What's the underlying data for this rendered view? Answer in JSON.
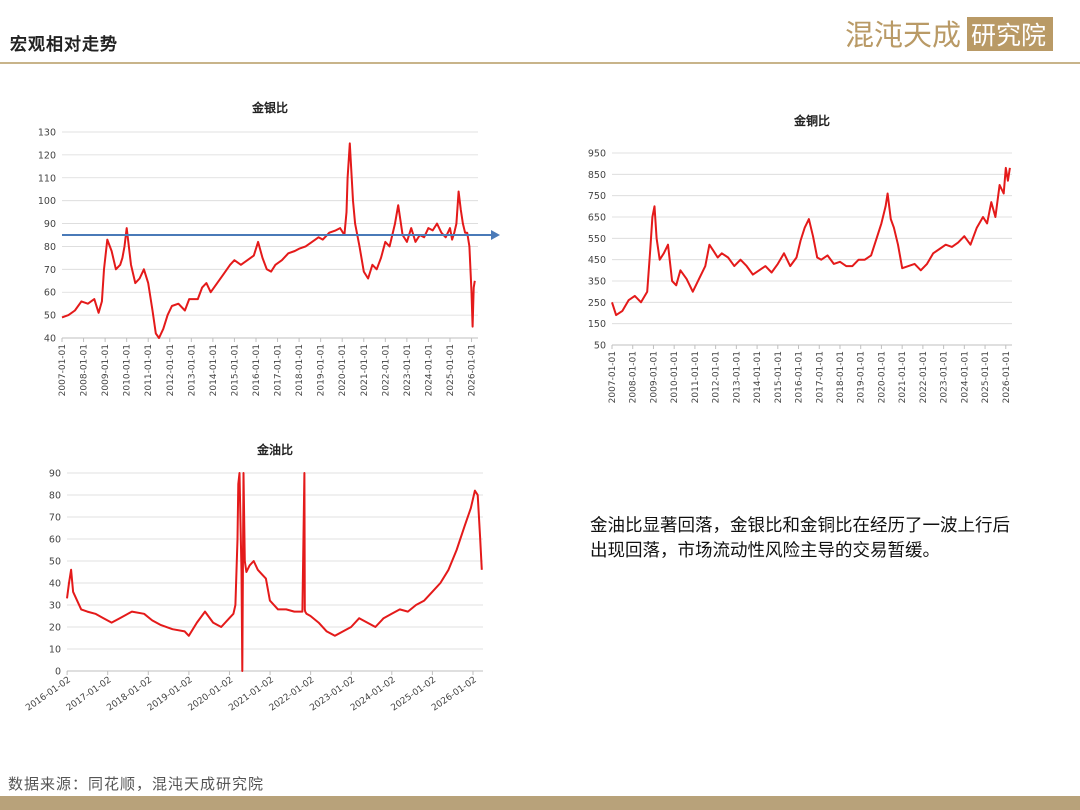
{
  "header": {
    "title": "宏观相对走势"
  },
  "logo": {
    "text": "混沌天成研究院",
    "brand_left": "混沌天成",
    "brand_right": "研究院",
    "color": "#b99a66",
    "box_color": "#b99a66"
  },
  "annotation": {
    "text": "金油比显著回落，金银比和金铜比在经历了一波上行后出现回落，市场流动性风险主导的交易暂缓。"
  },
  "source": {
    "text": "数据来源：同花顺，混沌天成研究院"
  },
  "colors": {
    "series": "#e41a1a",
    "arrow": "#4a7ab8",
    "grid": "#d9d9d9",
    "accent_line": "#c8b48a"
  },
  "chart_data": [
    {
      "id": "gold-silver",
      "type": "line",
      "title": "金银比",
      "ylim": [
        40,
        130
      ],
      "yticks": [
        40,
        50,
        60,
        70,
        80,
        90,
        100,
        110,
        120,
        130
      ],
      "xlim": [
        2007.0,
        2026.3
      ],
      "xtick_labels": [
        "2007-01-01",
        "2008-01-01",
        "2009-01-01",
        "2010-01-01",
        "2011-01-01",
        "2012-01-01",
        "2013-01-01",
        "2014-01-01",
        "2015-01-01",
        "2016-01-01",
        "2017-01-01",
        "2018-01-01",
        "2019-01-01",
        "2020-01-01",
        "2021-01-01",
        "2022-01-01",
        "2023-01-01",
        "2024-01-01",
        "2025-01-01",
        "2026-01-01"
      ],
      "grid": true,
      "reference_line": {
        "y": 85,
        "color": "#4a7ab8",
        "arrow": true
      },
      "series": [
        {
          "color": "#e41a1a",
          "x": [
            2007.0,
            2007.3,
            2007.6,
            2007.9,
            2008.2,
            2008.5,
            2008.7,
            2008.85,
            2008.95,
            2009.1,
            2009.3,
            2009.5,
            2009.7,
            2009.8,
            2009.9,
            2010.0,
            2010.2,
            2010.4,
            2010.6,
            2010.8,
            2011.0,
            2011.2,
            2011.35,
            2011.5,
            2011.7,
            2011.9,
            2012.1,
            2012.4,
            2012.7,
            2012.9,
            2013.1,
            2013.3,
            2013.5,
            2013.7,
            2013.9,
            2014.2,
            2014.5,
            2014.8,
            2015.0,
            2015.3,
            2015.6,
            2015.9,
            2016.1,
            2016.3,
            2016.5,
            2016.7,
            2016.9,
            2017.2,
            2017.5,
            2017.8,
            2018.0,
            2018.3,
            2018.6,
            2018.9,
            2019.1,
            2019.4,
            2019.7,
            2019.9,
            2020.1,
            2020.2,
            2020.25,
            2020.35,
            2020.5,
            2020.6,
            2020.8,
            2021.0,
            2021.2,
            2021.4,
            2021.6,
            2021.8,
            2022.0,
            2022.2,
            2022.45,
            2022.6,
            2022.8,
            2023.0,
            2023.2,
            2023.4,
            2023.6,
            2023.8,
            2024.0,
            2024.2,
            2024.4,
            2024.6,
            2024.8,
            2025.0,
            2025.1,
            2025.2,
            2025.3,
            2025.4,
            2025.5,
            2025.6,
            2025.7,
            2025.8,
            2025.9,
            2026.0,
            2026.05,
            2026.1,
            2026.15
          ],
          "y": [
            49,
            50,
            52,
            56,
            55,
            57,
            51,
            56,
            70,
            83,
            78,
            70,
            72,
            75,
            80,
            88,
            72,
            64,
            66,
            70,
            64,
            52,
            42,
            40,
            44,
            50,
            54,
            55,
            52,
            57,
            57,
            57,
            62,
            64,
            60,
            64,
            68,
            72,
            74,
            72,
            74,
            76,
            82,
            75,
            70,
            69,
            72,
            74,
            77,
            78,
            79,
            80,
            82,
            84,
            83,
            86,
            87,
            88,
            85,
            95,
            110,
            125,
            100,
            90,
            80,
            69,
            66,
            72,
            70,
            75,
            82,
            80,
            90,
            98,
            85,
            82,
            88,
            82,
            85,
            84,
            88,
            87,
            90,
            86,
            84,
            88,
            83,
            86,
            90,
            104,
            96,
            90,
            86,
            86,
            80,
            60,
            45,
            62,
            65
          ]
        }
      ]
    },
    {
      "id": "gold-copper",
      "type": "line",
      "title": "金铜比",
      "ylim": [
        50,
        950
      ],
      "yticks": [
        50,
        150,
        250,
        350,
        450,
        550,
        650,
        750,
        850,
        950
      ],
      "xlim": [
        2007.0,
        2026.3
      ],
      "xtick_labels": [
        "2007-01-01",
        "2008-01-01",
        "2009-01-01",
        "2010-01-01",
        "2011-01-01",
        "2012-01-01",
        "2013-01-01",
        "2014-01-01",
        "2015-01-01",
        "2016-01-01",
        "2017-01-01",
        "2018-01-01",
        "2019-01-01",
        "2020-01-01",
        "2021-01-01",
        "2022-01-01",
        "2023-01-01",
        "2024-01-01",
        "2025-01-01",
        "2026-01-01"
      ],
      "grid": true,
      "series": [
        {
          "color": "#e41a1a",
          "x": [
            2007.0,
            2007.2,
            2007.5,
            2007.8,
            2008.1,
            2008.4,
            2008.7,
            2008.85,
            2008.95,
            2009.05,
            2009.15,
            2009.3,
            2009.5,
            2009.7,
            2009.9,
            2010.1,
            2010.3,
            2010.6,
            2010.9,
            2011.2,
            2011.5,
            2011.7,
            2011.9,
            2012.1,
            2012.3,
            2012.6,
            2012.9,
            2013.2,
            2013.5,
            2013.8,
            2014.1,
            2014.4,
            2014.7,
            2015.0,
            2015.3,
            2015.6,
            2015.9,
            2016.1,
            2016.3,
            2016.5,
            2016.7,
            2016.9,
            2017.1,
            2017.4,
            2017.7,
            2018.0,
            2018.3,
            2018.6,
            2018.9,
            2019.2,
            2019.5,
            2019.8,
            2020.0,
            2020.2,
            2020.3,
            2020.45,
            2020.6,
            2020.8,
            2021.0,
            2021.3,
            2021.6,
            2021.9,
            2022.2,
            2022.5,
            2022.8,
            2023.1,
            2023.4,
            2023.7,
            2024.0,
            2024.3,
            2024.6,
            2024.9,
            2025.1,
            2025.3,
            2025.5,
            2025.7,
            2025.9,
            2026.0,
            2026.1,
            2026.2
          ],
          "y": [
            250,
            190,
            210,
            260,
            280,
            250,
            300,
            500,
            650,
            700,
            550,
            450,
            480,
            520,
            350,
            330,
            400,
            360,
            300,
            360,
            420,
            520,
            490,
            460,
            480,
            460,
            420,
            450,
            420,
            380,
            400,
            420,
            390,
            430,
            480,
            420,
            460,
            540,
            600,
            640,
            560,
            460,
            450,
            470,
            430,
            440,
            420,
            420,
            450,
            450,
            470,
            560,
            620,
            700,
            760,
            640,
            600,
            520,
            410,
            420,
            430,
            400,
            430,
            480,
            500,
            520,
            510,
            530,
            560,
            520,
            600,
            650,
            620,
            720,
            650,
            800,
            760,
            880,
            820,
            880
          ]
        }
      ]
    },
    {
      "id": "gold-oil",
      "type": "line",
      "title": "金油比",
      "ylim": [
        0,
        90
      ],
      "yticks": [
        0,
        10,
        20,
        30,
        40,
        50,
        60,
        70,
        80,
        90
      ],
      "xlim": [
        2016.0,
        2026.25
      ],
      "xtick_labels": [
        "2016-01-02",
        "2017-01-02",
        "2018-01-02",
        "2019-01-02",
        "2020-01-02",
        "2021-01-02",
        "2022-01-02",
        "2023-01-02",
        "2024-01-02",
        "2025-01-02",
        "2026-01-02"
      ],
      "grid": true,
      "series": [
        {
          "color": "#e41a1a",
          "x": [
            2016.0,
            2016.05,
            2016.1,
            2016.15,
            2016.25,
            2016.35,
            2016.5,
            2016.7,
            2016.9,
            2017.1,
            2017.3,
            2017.6,
            2017.9,
            2018.1,
            2018.3,
            2018.6,
            2018.9,
            2019.0,
            2019.2,
            2019.4,
            2019.6,
            2019.8,
            2020.0,
            2020.1,
            2020.15,
            2020.2,
            2020.22,
            2020.25,
            2020.3,
            2020.32,
            2020.35,
            2020.38,
            2020.42,
            2020.5,
            2020.6,
            2020.7,
            2020.8,
            2020.9,
            2021.0,
            2021.2,
            2021.4,
            2021.6,
            2021.8,
            2021.85,
            2021.86,
            2021.87,
            2021.9,
            2022.0,
            2022.2,
            2022.4,
            2022.6,
            2022.8,
            2023.0,
            2023.2,
            2023.4,
            2023.6,
            2023.8,
            2024.0,
            2024.2,
            2024.4,
            2024.6,
            2024.8,
            2025.0,
            2025.2,
            2025.4,
            2025.6,
            2025.8,
            2025.95,
            2026.05,
            2026.12,
            2026.18,
            2026.22
          ],
          "y": [
            33,
            40,
            46,
            36,
            32,
            28,
            27,
            26,
            24,
            22,
            24,
            27,
            26,
            23,
            21,
            19,
            18,
            16,
            22,
            27,
            22,
            20,
            24,
            26,
            30,
            60,
            85,
            90,
            45,
            0,
            90,
            50,
            45,
            48,
            50,
            46,
            44,
            42,
            32,
            28,
            28,
            27,
            27,
            90,
            28,
            27,
            26,
            25,
            22,
            18,
            16,
            18,
            20,
            24,
            22,
            20,
            24,
            26,
            28,
            27,
            30,
            32,
            36,
            40,
            46,
            55,
            66,
            74,
            82,
            80,
            60,
            46
          ]
        }
      ]
    }
  ]
}
